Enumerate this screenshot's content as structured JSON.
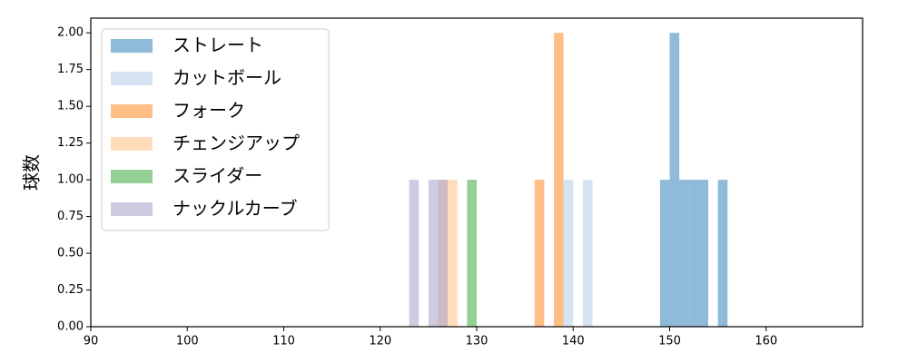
{
  "chart_data": {
    "type": "histogram",
    "ylabel": "球数",
    "alpha": 0.5,
    "legend": "upper left",
    "xlim": [
      90,
      170
    ],
    "xticks": [
      90,
      100,
      110,
      120,
      130,
      140,
      150,
      160
    ],
    "ylim": [
      0,
      2.1
    ],
    "yticks": [
      {
        "value": 0,
        "label": "0.00"
      },
      {
        "value": 0.25,
        "label": "0.25"
      },
      {
        "value": 0.5,
        "label": "0.50"
      },
      {
        "value": 0.75,
        "label": "0.75"
      },
      {
        "value": 1,
        "label": "1.00"
      },
      {
        "value": 1.25,
        "label": "1.25"
      },
      {
        "value": 1.5,
        "label": "1.50"
      },
      {
        "value": 1.75,
        "label": "1.75"
      },
      {
        "value": 2,
        "label": "2.00"
      }
    ],
    "series": [
      {
        "name": "ストレート",
        "color": "#1f77b4",
        "bins": [
          149,
          150,
          151,
          152,
          153,
          154,
          155,
          156
        ],
        "values": [
          1,
          2,
          1,
          1,
          1,
          0,
          1
        ]
      },
      {
        "name": "カットボール",
        "color": "#aec7e8",
        "bins": [
          139,
          140,
          141,
          142
        ],
        "values": [
          1,
          0,
          1
        ]
      },
      {
        "name": "フォーク",
        "color": "#ff7f0e",
        "bins": [
          136,
          137,
          138,
          139
        ],
        "values": [
          1,
          0,
          2
        ]
      },
      {
        "name": "チェンジアップ",
        "color": "#ffbb78",
        "bins": [
          126,
          127,
          128
        ],
        "values": [
          1,
          1
        ]
      },
      {
        "name": "スライダー",
        "color": "#2ca02c",
        "bins": [
          129,
          130
        ],
        "values": [
          1
        ]
      },
      {
        "name": "ナックルカーブ",
        "color": "#9e9ac8",
        "bins": [
          123,
          124,
          125,
          126,
          127
        ],
        "values": [
          1,
          0,
          1,
          1
        ]
      }
    ]
  }
}
